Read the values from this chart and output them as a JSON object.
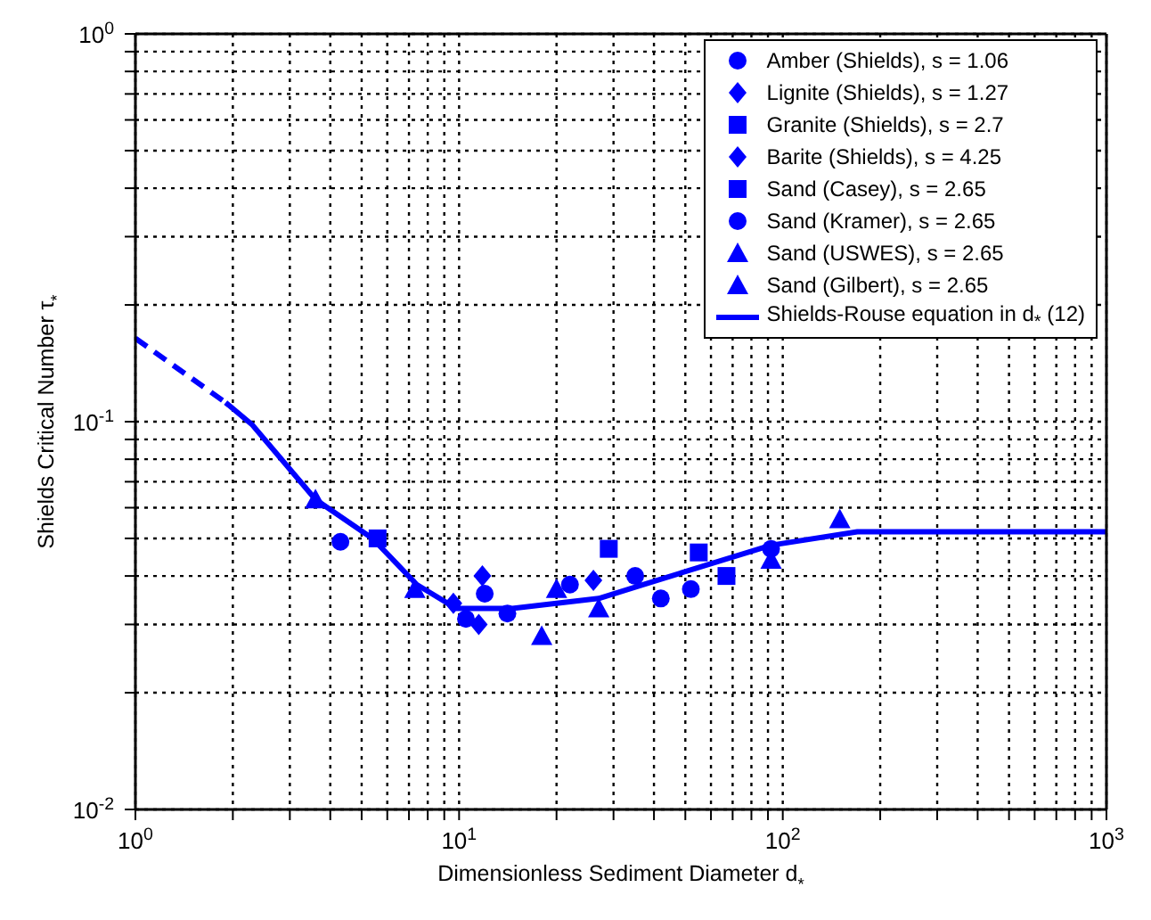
{
  "chart_data": {
    "type": "scatter",
    "xlabel": "Dimensionless Sediment Diameter d$_{*}$",
    "ylabel": "Shields Critical Number  τ$_{*}$",
    "log": "xy",
    "grid": true,
    "legend": "top right",
    "xlim": [
      1,
      1000
    ],
    "ylim": [
      0.01,
      1
    ],
    "xticks": [
      {
        "value": 1,
        "label": "10$^{0}$"
      },
      {
        "value": 2,
        "label": null
      },
      {
        "value": 3,
        "label": null
      },
      {
        "value": 4,
        "label": null
      },
      {
        "value": 5,
        "label": null
      },
      {
        "value": 6,
        "label": null
      },
      {
        "value": 7,
        "label": null
      },
      {
        "value": 8,
        "label": null
      },
      {
        "value": 9,
        "label": null
      },
      {
        "value": 10,
        "label": "10$^{1}$"
      },
      {
        "value": 20,
        "label": null
      },
      {
        "value": 30,
        "label": null
      },
      {
        "value": 40,
        "label": null
      },
      {
        "value": 50,
        "label": null
      },
      {
        "value": 60,
        "label": null
      },
      {
        "value": 70,
        "label": null
      },
      {
        "value": 80,
        "label": null
      },
      {
        "value": 90,
        "label": null
      },
      {
        "value": 100,
        "label": "10$^{2}$"
      },
      {
        "value": 200,
        "label": null
      },
      {
        "value": 300,
        "label": null
      },
      {
        "value": 400,
        "label": null
      },
      {
        "value": 500,
        "label": null
      },
      {
        "value": 600,
        "label": null
      },
      {
        "value": 700,
        "label": null
      },
      {
        "value": 800,
        "label": null
      },
      {
        "value": 900,
        "label": null
      },
      {
        "value": 1000,
        "label": "10$^{3}$"
      }
    ],
    "yticks": [
      {
        "value": 0.01,
        "label": "10$^{-2}$"
      },
      {
        "value": 0.02,
        "label": null
      },
      {
        "value": 0.03,
        "label": null
      },
      {
        "value": 0.04,
        "label": null
      },
      {
        "value": 0.05,
        "label": null
      },
      {
        "value": 0.06,
        "label": null
      },
      {
        "value": 0.07,
        "label": null
      },
      {
        "value": 0.08,
        "label": null
      },
      {
        "value": 0.09,
        "label": null
      },
      {
        "value": 0.1,
        "label": "10$^{-1}$"
      },
      {
        "value": 0.2,
        "label": null
      },
      {
        "value": 0.3,
        "label": null
      },
      {
        "value": 0.4,
        "label": null
      },
      {
        "value": 0.5,
        "label": null
      },
      {
        "value": 0.6,
        "label": null
      },
      {
        "value": 0.7,
        "label": null
      },
      {
        "value": 0.8,
        "label": null
      },
      {
        "value": 0.9,
        "label": null
      },
      {
        "value": 1,
        "label": "10$^{0}$"
      }
    ],
    "series": [
      {
        "name": "Amber (Shields), s = 1.06",
        "color": "#0000ff",
        "marker": "circle",
        "x": [
          4.3,
          10.5,
          14.1
        ],
        "values": [
          0.049,
          0.031,
          0.032
        ]
      },
      {
        "name": "Lignite (Shields), s = 1.27",
        "color": "#0000ff",
        "marker": "diamond",
        "x": [
          11.8,
          26
        ],
        "values": [
          0.04,
          0.039
        ]
      },
      {
        "name": "Granite (Shields), s = 2.7",
        "color": "#0000ff",
        "marker": "square",
        "x": [
          5.6,
          55
        ],
        "values": [
          0.05,
          0.046
        ]
      },
      {
        "name": "Barite (Shields), s = 4.25",
        "color": "#0000ff",
        "marker": "diamond",
        "x": [
          9.6,
          11.5
        ],
        "values": [
          0.034,
          0.03
        ]
      },
      {
        "name": "Sand (Casey), s = 2.65",
        "color": "#0000ff",
        "marker": "square",
        "x": [
          29,
          67
        ],
        "values": [
          0.047,
          0.04
        ]
      },
      {
        "name": "Sand (Kramer), s = 2.65",
        "color": "#0000ff",
        "marker": "circle",
        "x": [
          12,
          22,
          35,
          42,
          52,
          92
        ],
        "values": [
          0.036,
          0.038,
          0.04,
          0.035,
          0.037,
          0.047
        ]
      },
      {
        "name": "Sand (USWES), s = 2.65",
        "color": "#0000ff",
        "marker": "triangle",
        "x": [
          18,
          20,
          27,
          92
        ],
        "values": [
          0.028,
          0.037,
          0.033,
          0.044
        ]
      },
      {
        "name": "Sand (Gilbert), s = 2.65",
        "color": "#0000ff",
        "marker": "triangle",
        "x": [
          3.6,
          7.3,
          150
        ],
        "values": [
          0.063,
          0.037,
          0.056
        ]
      },
      {
        "type": "line",
        "color": "#0000ff",
        "line_style": "dashed",
        "x": [
          1,
          1.9
        ],
        "values": [
          0.164,
          0.112
        ]
      },
      {
        "type": "line",
        "name": "Shields-Rouse equation in d$_{*}$ (12)",
        "color": "#0000ff",
        "line_style": "solid",
        "x": [
          1.9,
          2.3,
          3.6,
          5.4,
          7.4,
          9.8,
          14.6,
          27,
          37,
          92,
          170,
          1000
        ],
        "values": [
          0.112,
          0.098,
          0.063,
          0.05,
          0.038,
          0.033,
          0.033,
          0.035,
          0.038,
          0.048,
          0.052,
          0.052
        ]
      }
    ]
  }
}
